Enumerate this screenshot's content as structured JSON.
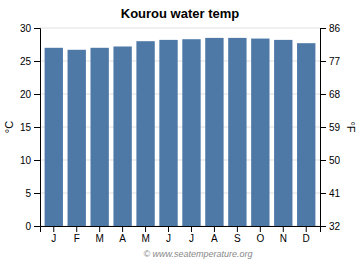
{
  "chart_data": {
    "type": "bar",
    "title": "Kourou water temp",
    "categories": [
      "J",
      "F",
      "M",
      "A",
      "M",
      "J",
      "J",
      "A",
      "S",
      "O",
      "N",
      "D"
    ],
    "values": [
      27.0,
      26.7,
      27.0,
      27.2,
      28.0,
      28.2,
      28.3,
      28.5,
      28.5,
      28.4,
      28.2,
      27.7
    ],
    "ylim": [
      0,
      30
    ],
    "yticks": [
      0,
      5,
      10,
      15,
      20,
      25,
      30
    ],
    "ylabel": "°C",
    "y2lim": [
      32,
      86
    ],
    "y2ticks": [
      32,
      41,
      50,
      59,
      68,
      77,
      86
    ],
    "y2label": "°F",
    "grid": true,
    "annotations": [
      "© www.seatemperature.org"
    ]
  }
}
